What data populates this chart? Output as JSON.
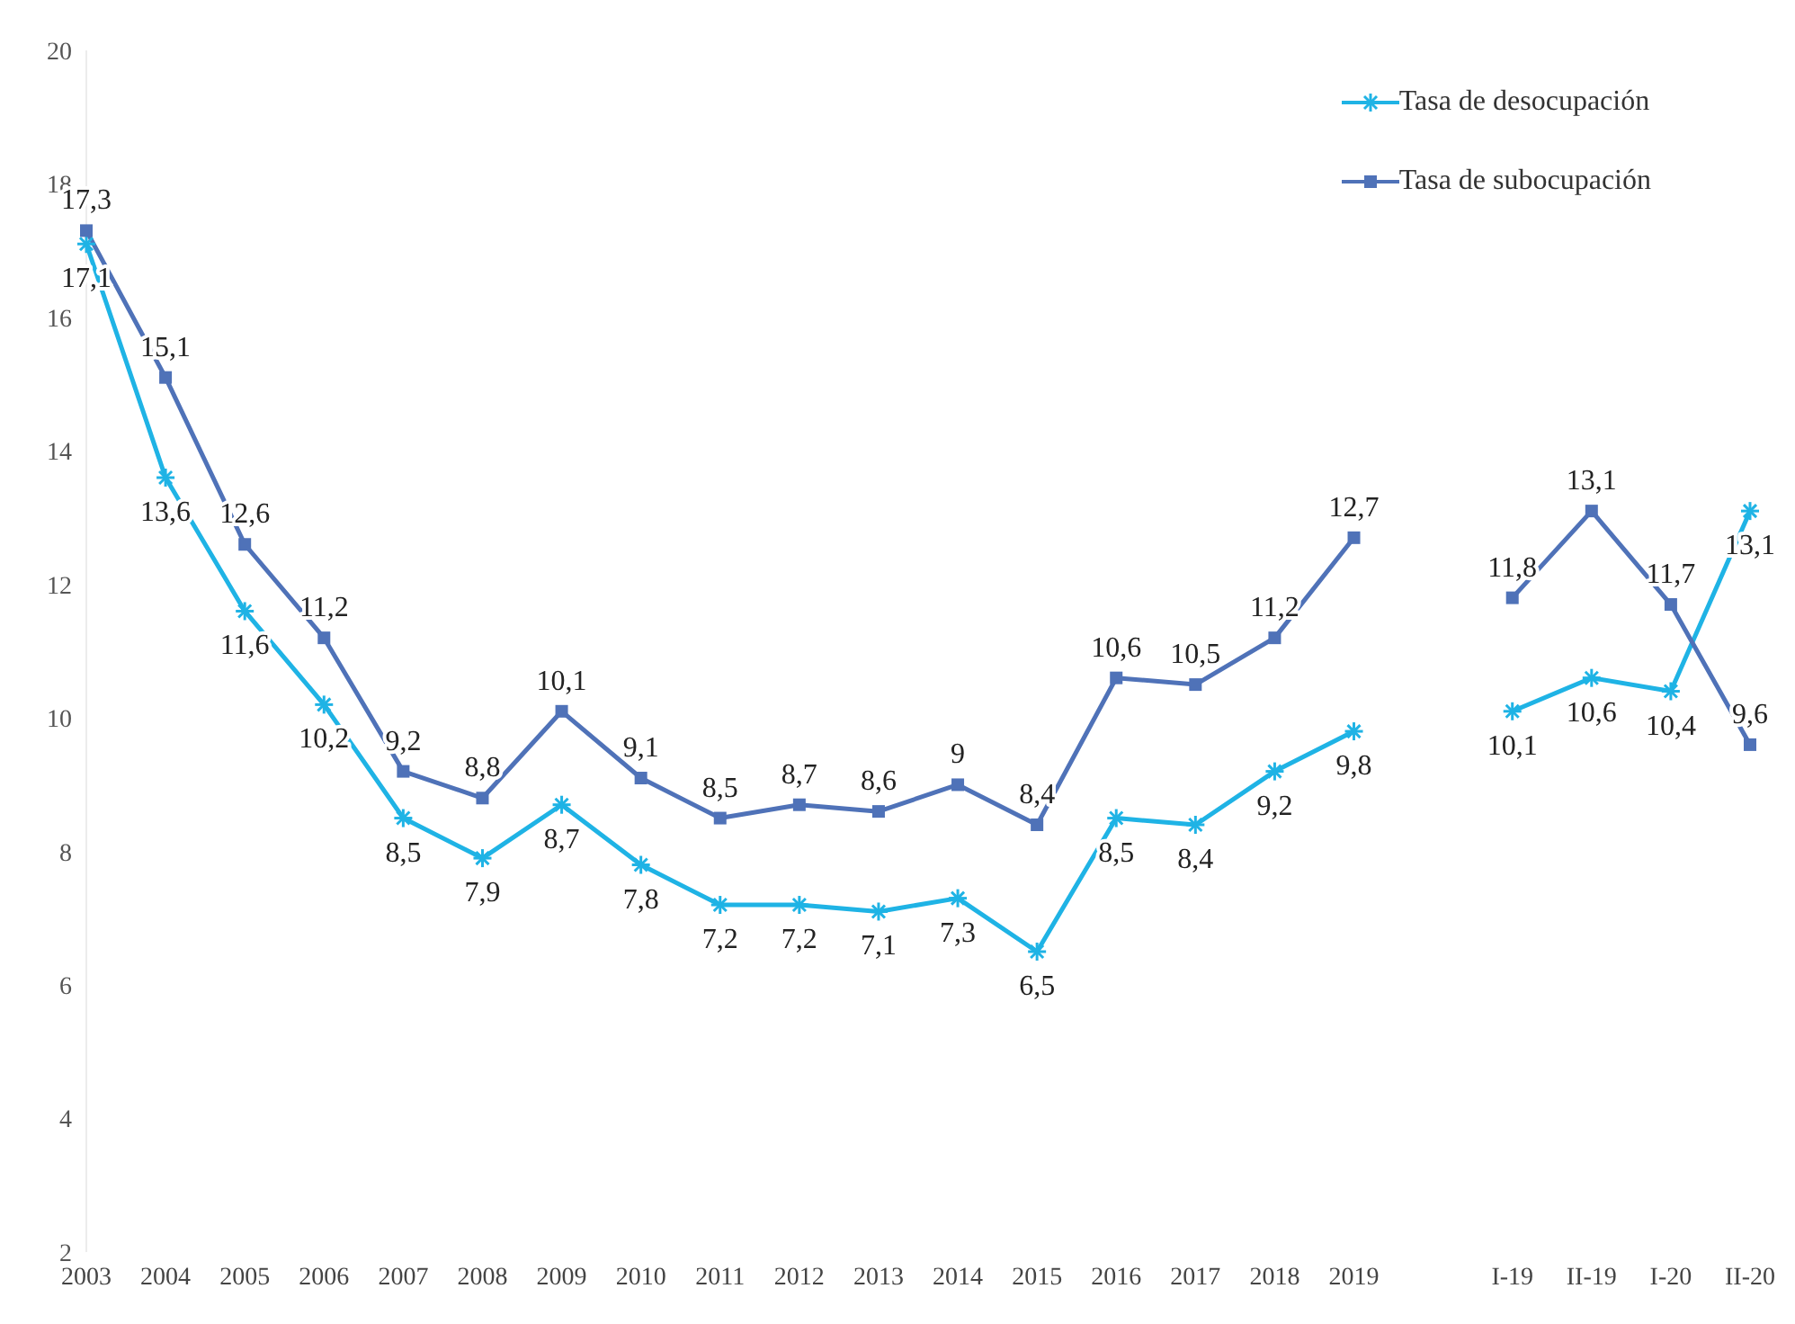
{
  "chart_data": {
    "type": "line",
    "categories": [
      "2003",
      "2004",
      "2005",
      "2006",
      "2007",
      "2008",
      "2009",
      "2010",
      "2011",
      "2012",
      "2013",
      "2014",
      "2015",
      "2016",
      "2017",
      "2018",
      "2019",
      null,
      "I-19",
      "II-19",
      "I-20",
      "II-20"
    ],
    "series": [
      {
        "name": "Tasa de desocupación",
        "color": "#1fb3e5",
        "marker": "cross",
        "values": [
          17.1,
          13.6,
          11.6,
          10.2,
          8.5,
          7.9,
          8.7,
          7.8,
          7.2,
          7.2,
          7.1,
          7.3,
          6.5,
          8.5,
          8.4,
          9.2,
          9.8,
          null,
          10.1,
          10.6,
          10.4,
          13.1
        ],
        "value_labels": [
          "17,1",
          "13,6",
          "11,6",
          "10,2",
          "8,5",
          "7,9",
          "8,7",
          "7,8",
          "7,2",
          "7,2",
          "7,1",
          "7,3",
          "6,5",
          "8,5",
          "8,4",
          "9,2",
          "9,8",
          null,
          "10,1",
          "10,6",
          "10,4",
          "13,1"
        ]
      },
      {
        "name": "Tasa de subocupación",
        "color": "#4f72b8",
        "marker": "square",
        "values": [
          17.3,
          15.1,
          12.6,
          11.2,
          9.2,
          8.8,
          10.1,
          9.1,
          8.5,
          8.7,
          8.6,
          9,
          8.4,
          10.6,
          10.5,
          11.2,
          12.7,
          null,
          11.8,
          13.1,
          11.7,
          9.6
        ],
        "value_labels": [
          "17,3",
          "15,1",
          "12,6",
          "11,2",
          "9,2",
          "8,8",
          "10,1",
          "9,1",
          "8,5",
          "8,7",
          "8,6",
          "9",
          "8,4",
          "10,6",
          "10,5",
          "11,2",
          "12,7",
          null,
          "11,8",
          "13,1",
          "11,7",
          "9,6"
        ]
      }
    ],
    "ylim": [
      2,
      20
    ],
    "yticks": [
      2,
      4,
      6,
      8,
      10,
      12,
      14,
      16,
      18,
      20
    ],
    "grid": false,
    "legend": "top right"
  }
}
